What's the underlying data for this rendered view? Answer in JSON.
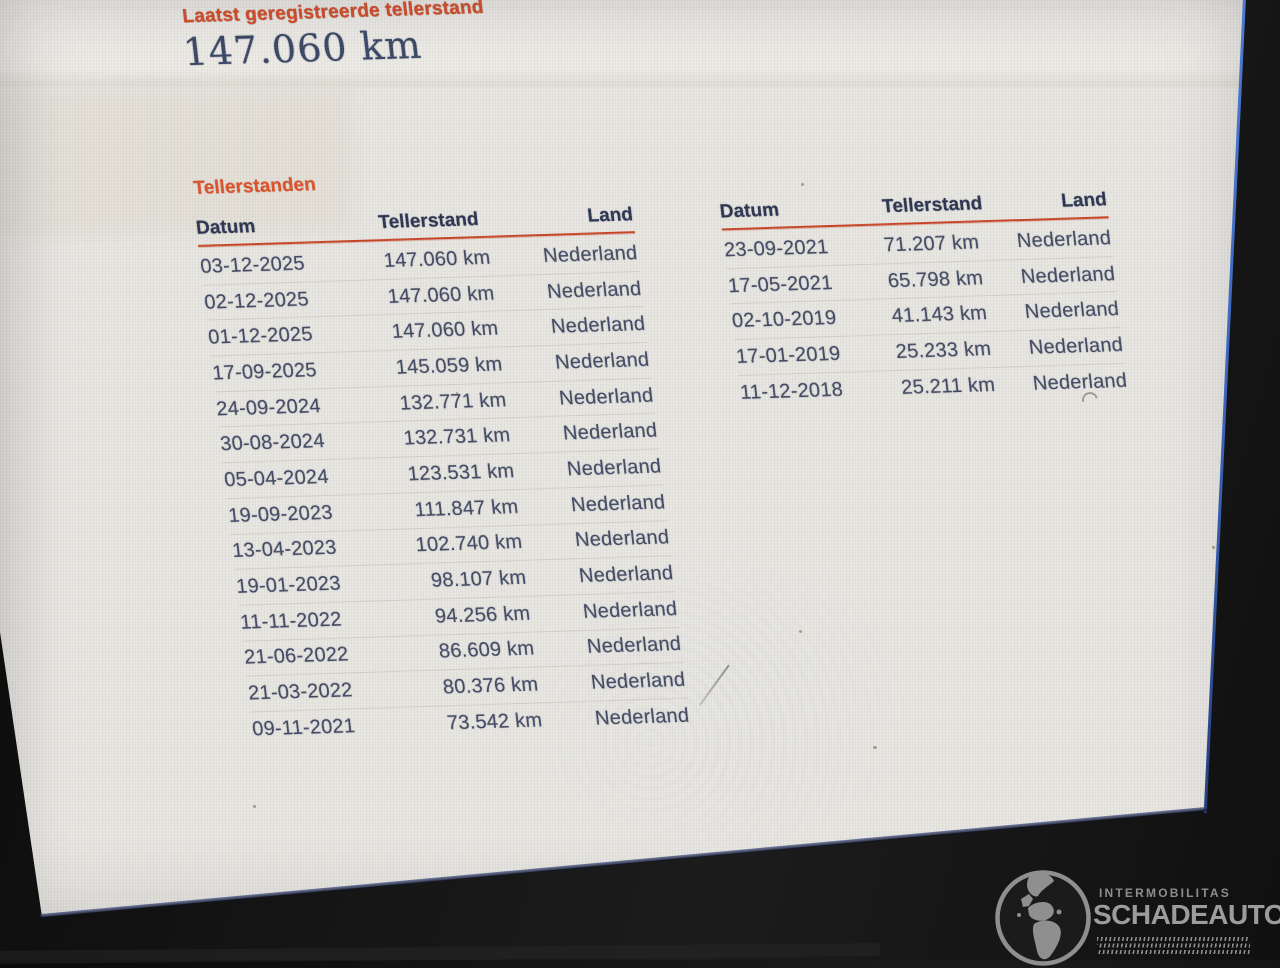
{
  "screen": {
    "last_reading": {
      "label": "Laatst geregistreerde tellerstand",
      "value": "147.060 km"
    },
    "table_section": {
      "title": "Tellerstanden",
      "columns": {
        "date": "Datum",
        "reading": "Tellerstand",
        "country": "Land"
      },
      "left_rows": [
        {
          "date": "03-12-2025",
          "reading": "147.060 km",
          "country": "Nederland"
        },
        {
          "date": "02-12-2025",
          "reading": "147.060 km",
          "country": "Nederland"
        },
        {
          "date": "01-12-2025",
          "reading": "147.060 km",
          "country": "Nederland"
        },
        {
          "date": "17-09-2025",
          "reading": "145.059 km",
          "country": "Nederland"
        },
        {
          "date": "24-09-2024",
          "reading": "132.771 km",
          "country": "Nederland"
        },
        {
          "date": "30-08-2024",
          "reading": "132.731 km",
          "country": "Nederland"
        },
        {
          "date": "05-04-2024",
          "reading": "123.531 km",
          "country": "Nederland"
        },
        {
          "date": "19-09-2023",
          "reading": "111.847 km",
          "country": "Nederland"
        },
        {
          "date": "13-04-2023",
          "reading": "102.740 km",
          "country": "Nederland"
        },
        {
          "date": "19-01-2023",
          "reading": "98.107 km",
          "country": "Nederland"
        },
        {
          "date": "11-11-2022",
          "reading": "94.256 km",
          "country": "Nederland"
        },
        {
          "date": "21-06-2022",
          "reading": "86.609 km",
          "country": "Nederland"
        },
        {
          "date": "21-03-2022",
          "reading": "80.376 km",
          "country": "Nederland"
        },
        {
          "date": "09-11-2021",
          "reading": "73.542 km",
          "country": "Nederland"
        }
      ],
      "right_rows": [
        {
          "date": "23-09-2021",
          "reading": "71.207 km",
          "country": "Nederland"
        },
        {
          "date": "17-05-2021",
          "reading": "65.798 km",
          "country": "Nederland"
        },
        {
          "date": "02-10-2019",
          "reading": "41.143 km",
          "country": "Nederland"
        },
        {
          "date": "17-01-2019",
          "reading": "25.233 km",
          "country": "Nederland"
        },
        {
          "date": "11-12-2018",
          "reading": "25.211 km",
          "country": "Nederland"
        }
      ]
    }
  },
  "watermark": {
    "sub": "INTERMOBILITAS",
    "main": "SCHADEAUTOS.NL"
  },
  "colors": {
    "accent_orange": "#dd4f28",
    "underline_red": "#c84526",
    "header_navy": "#2a3450",
    "text_navy": "#414a63",
    "big_number_navy": "#3a4766",
    "screen_bg": "#e9e7e2",
    "edge_blue": "#3a63b8",
    "logo_gray": "#8d8d8d",
    "bezel_black": "#161616"
  }
}
